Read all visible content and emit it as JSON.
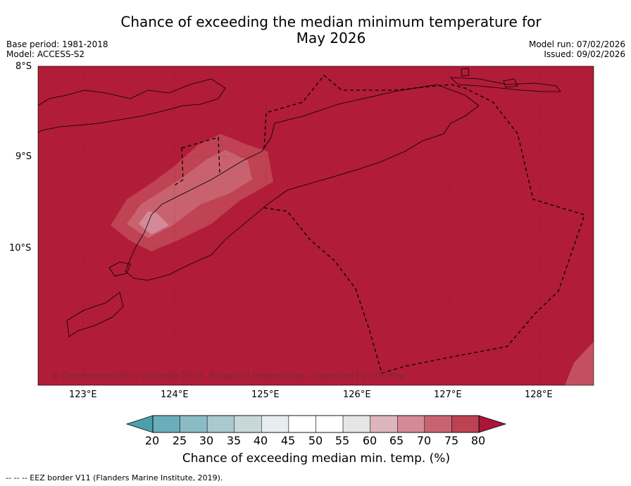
{
  "title_line1": "Chance of exceeding the median minimum temperature for",
  "title_line2": "May 2026",
  "meta_left": [
    "Base period: 1981-2018",
    "Model: ACCESS-S2"
  ],
  "meta_right": [
    "Model run: 07/02/2026",
    "Issued: 09/02/2026"
  ],
  "map": {
    "lat_labels": [
      "8°S",
      "9°S",
      "10°S"
    ],
    "lon_labels": [
      "123°E",
      "124°E",
      "125°E",
      "126°E",
      "127°E",
      "128°E"
    ],
    "base_fill": "#b11c38",
    "copyright": "© Commonwealth of Australia 2026, Bureau of Meteorology, supported by COSPPac"
  },
  "colorbar": {
    "ticks": [
      "20",
      "25",
      "30",
      "35",
      "40",
      "45",
      "50",
      "55",
      "60",
      "65",
      "70",
      "75",
      "80"
    ],
    "colors": [
      "#4e9fac",
      "#6aaebb",
      "#8bbcc5",
      "#a8c9cd",
      "#c7d8da",
      "#e7eef0",
      "#ffffff",
      "#ffffff",
      "#e6e6e6",
      "#dfb5bd",
      "#d48a97",
      "#c86472",
      "#bd4252",
      "#a8163a"
    ],
    "label": "Chance of exceeding median min. temp. (%)"
  },
  "footer": "--  --  -- EEZ border V11 (Flanders Marine Institute, 2019)."
}
